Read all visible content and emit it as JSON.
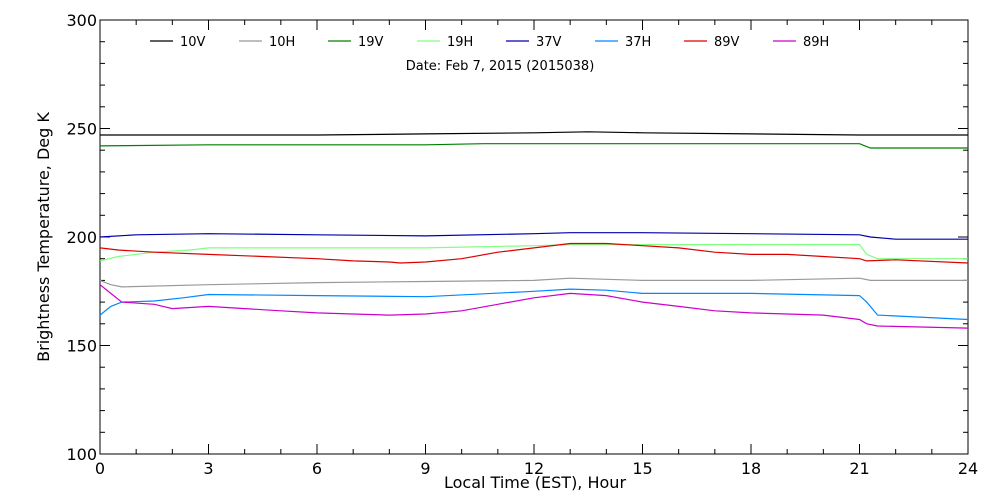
{
  "chart_data": {
    "type": "line",
    "annotation": "Date: Feb  7, 2015 (2015038)",
    "xlabel": "Local Time (EST), Hour",
    "ylabel": "Brightness Temperature, Deg K",
    "xlim": [
      0,
      24
    ],
    "ylim": [
      100,
      300
    ],
    "xticks": [
      0,
      3,
      6,
      9,
      12,
      15,
      18,
      21,
      24
    ],
    "yticks": [
      100,
      150,
      200,
      250,
      300
    ],
    "grid": false,
    "legend_placement": "top",
    "series": [
      {
        "name": "10V",
        "color": "#000000",
        "x": [
          0,
          3,
          6,
          9,
          12,
          13.5,
          15,
          18,
          21,
          24
        ],
        "y": [
          247,
          247,
          247,
          247.5,
          248,
          248.5,
          248,
          247.5,
          247,
          247
        ]
      },
      {
        "name": "10H",
        "color": "#999999",
        "x": [
          0,
          0.3,
          0.6,
          3,
          6,
          9,
          12,
          13,
          14,
          15,
          18,
          21,
          21.3,
          24
        ],
        "y": [
          180,
          178,
          177,
          178,
          179,
          179.5,
          180,
          181,
          180.5,
          180,
          180,
          181,
          180,
          180
        ]
      },
      {
        "name": "19V",
        "color": "#008000",
        "x": [
          0,
          3,
          6,
          9,
          10.6,
          12,
          15,
          18,
          21,
          21.3,
          24
        ],
        "y": [
          242,
          242.5,
          242.5,
          242.5,
          243,
          243,
          243,
          243,
          243,
          241,
          241
        ]
      },
      {
        "name": "19H",
        "color": "#80ff80",
        "x": [
          0,
          0.5,
          1.5,
          2.5,
          3,
          6,
          9,
          12,
          13,
          15,
          18,
          21,
          21.2,
          21.5,
          24
        ],
        "y": [
          189,
          191,
          193,
          194,
          195,
          195,
          195,
          196,
          196.5,
          196.5,
          196.5,
          196.5,
          192,
          190,
          190
        ]
      },
      {
        "name": "37V",
        "color": "#0000aa",
        "x": [
          0,
          1,
          3,
          6,
          9,
          12,
          13,
          15,
          18,
          21,
          21.3,
          22,
          24
        ],
        "y": [
          200,
          201,
          201.5,
          201,
          200.5,
          201.5,
          202,
          202,
          201.5,
          201,
          200,
          199,
          199
        ]
      },
      {
        "name": "37H",
        "color": "#0088ff",
        "x": [
          0,
          0.3,
          0.6,
          1.5,
          2.3,
          3,
          6,
          9,
          12,
          13,
          14,
          15,
          18,
          21,
          21.2,
          21.5,
          24
        ],
        "y": [
          164,
          168,
          170,
          170.5,
          172,
          173.5,
          173,
          172.5,
          175,
          176,
          175.5,
          174,
          174,
          173,
          170,
          164,
          162
        ]
      },
      {
        "name": "89V",
        "color": "#dd0000",
        "x": [
          0,
          0.5,
          1.5,
          3,
          4.5,
          6,
          7,
          8,
          8.3,
          9,
          10,
          11,
          12,
          13,
          14,
          15,
          16,
          17,
          18,
          19,
          20,
          21,
          21.2,
          22,
          24
        ],
        "y": [
          195,
          194,
          193,
          192,
          191,
          190,
          189,
          188.5,
          188,
          188.5,
          190,
          193,
          195,
          197,
          197,
          196,
          195,
          193,
          192,
          192,
          191,
          190,
          189,
          189.5,
          188
        ]
      },
      {
        "name": "89H",
        "color": "#cc00cc",
        "x": [
          0,
          0.3,
          0.6,
          1.5,
          2,
          3,
          4,
          5,
          6,
          7,
          8,
          9,
          10,
          11,
          12,
          13,
          14,
          15,
          16,
          17,
          18,
          19,
          20,
          21,
          21.2,
          21.5,
          24
        ],
        "y": [
          178,
          174,
          170,
          169,
          167,
          168,
          167,
          166,
          165,
          164.5,
          164,
          164.5,
          166,
          169,
          172,
          174,
          173,
          170,
          168,
          166,
          165,
          164.5,
          164,
          162,
          160,
          159,
          158
        ]
      }
    ]
  }
}
